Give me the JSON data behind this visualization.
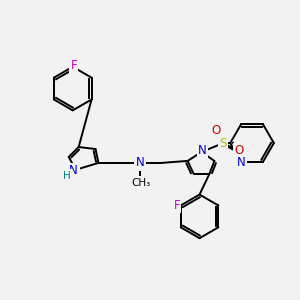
{
  "bg_color": "#f2f2f2",
  "atom_colors": {
    "C": "#000000",
    "N": "#0000cc",
    "H": "#008080",
    "F": "#cc00cc",
    "S": "#b8b800",
    "O": "#cc0000"
  },
  "bond_color": "#000000",
  "figsize": [
    3.0,
    3.0
  ],
  "dpi": 100
}
